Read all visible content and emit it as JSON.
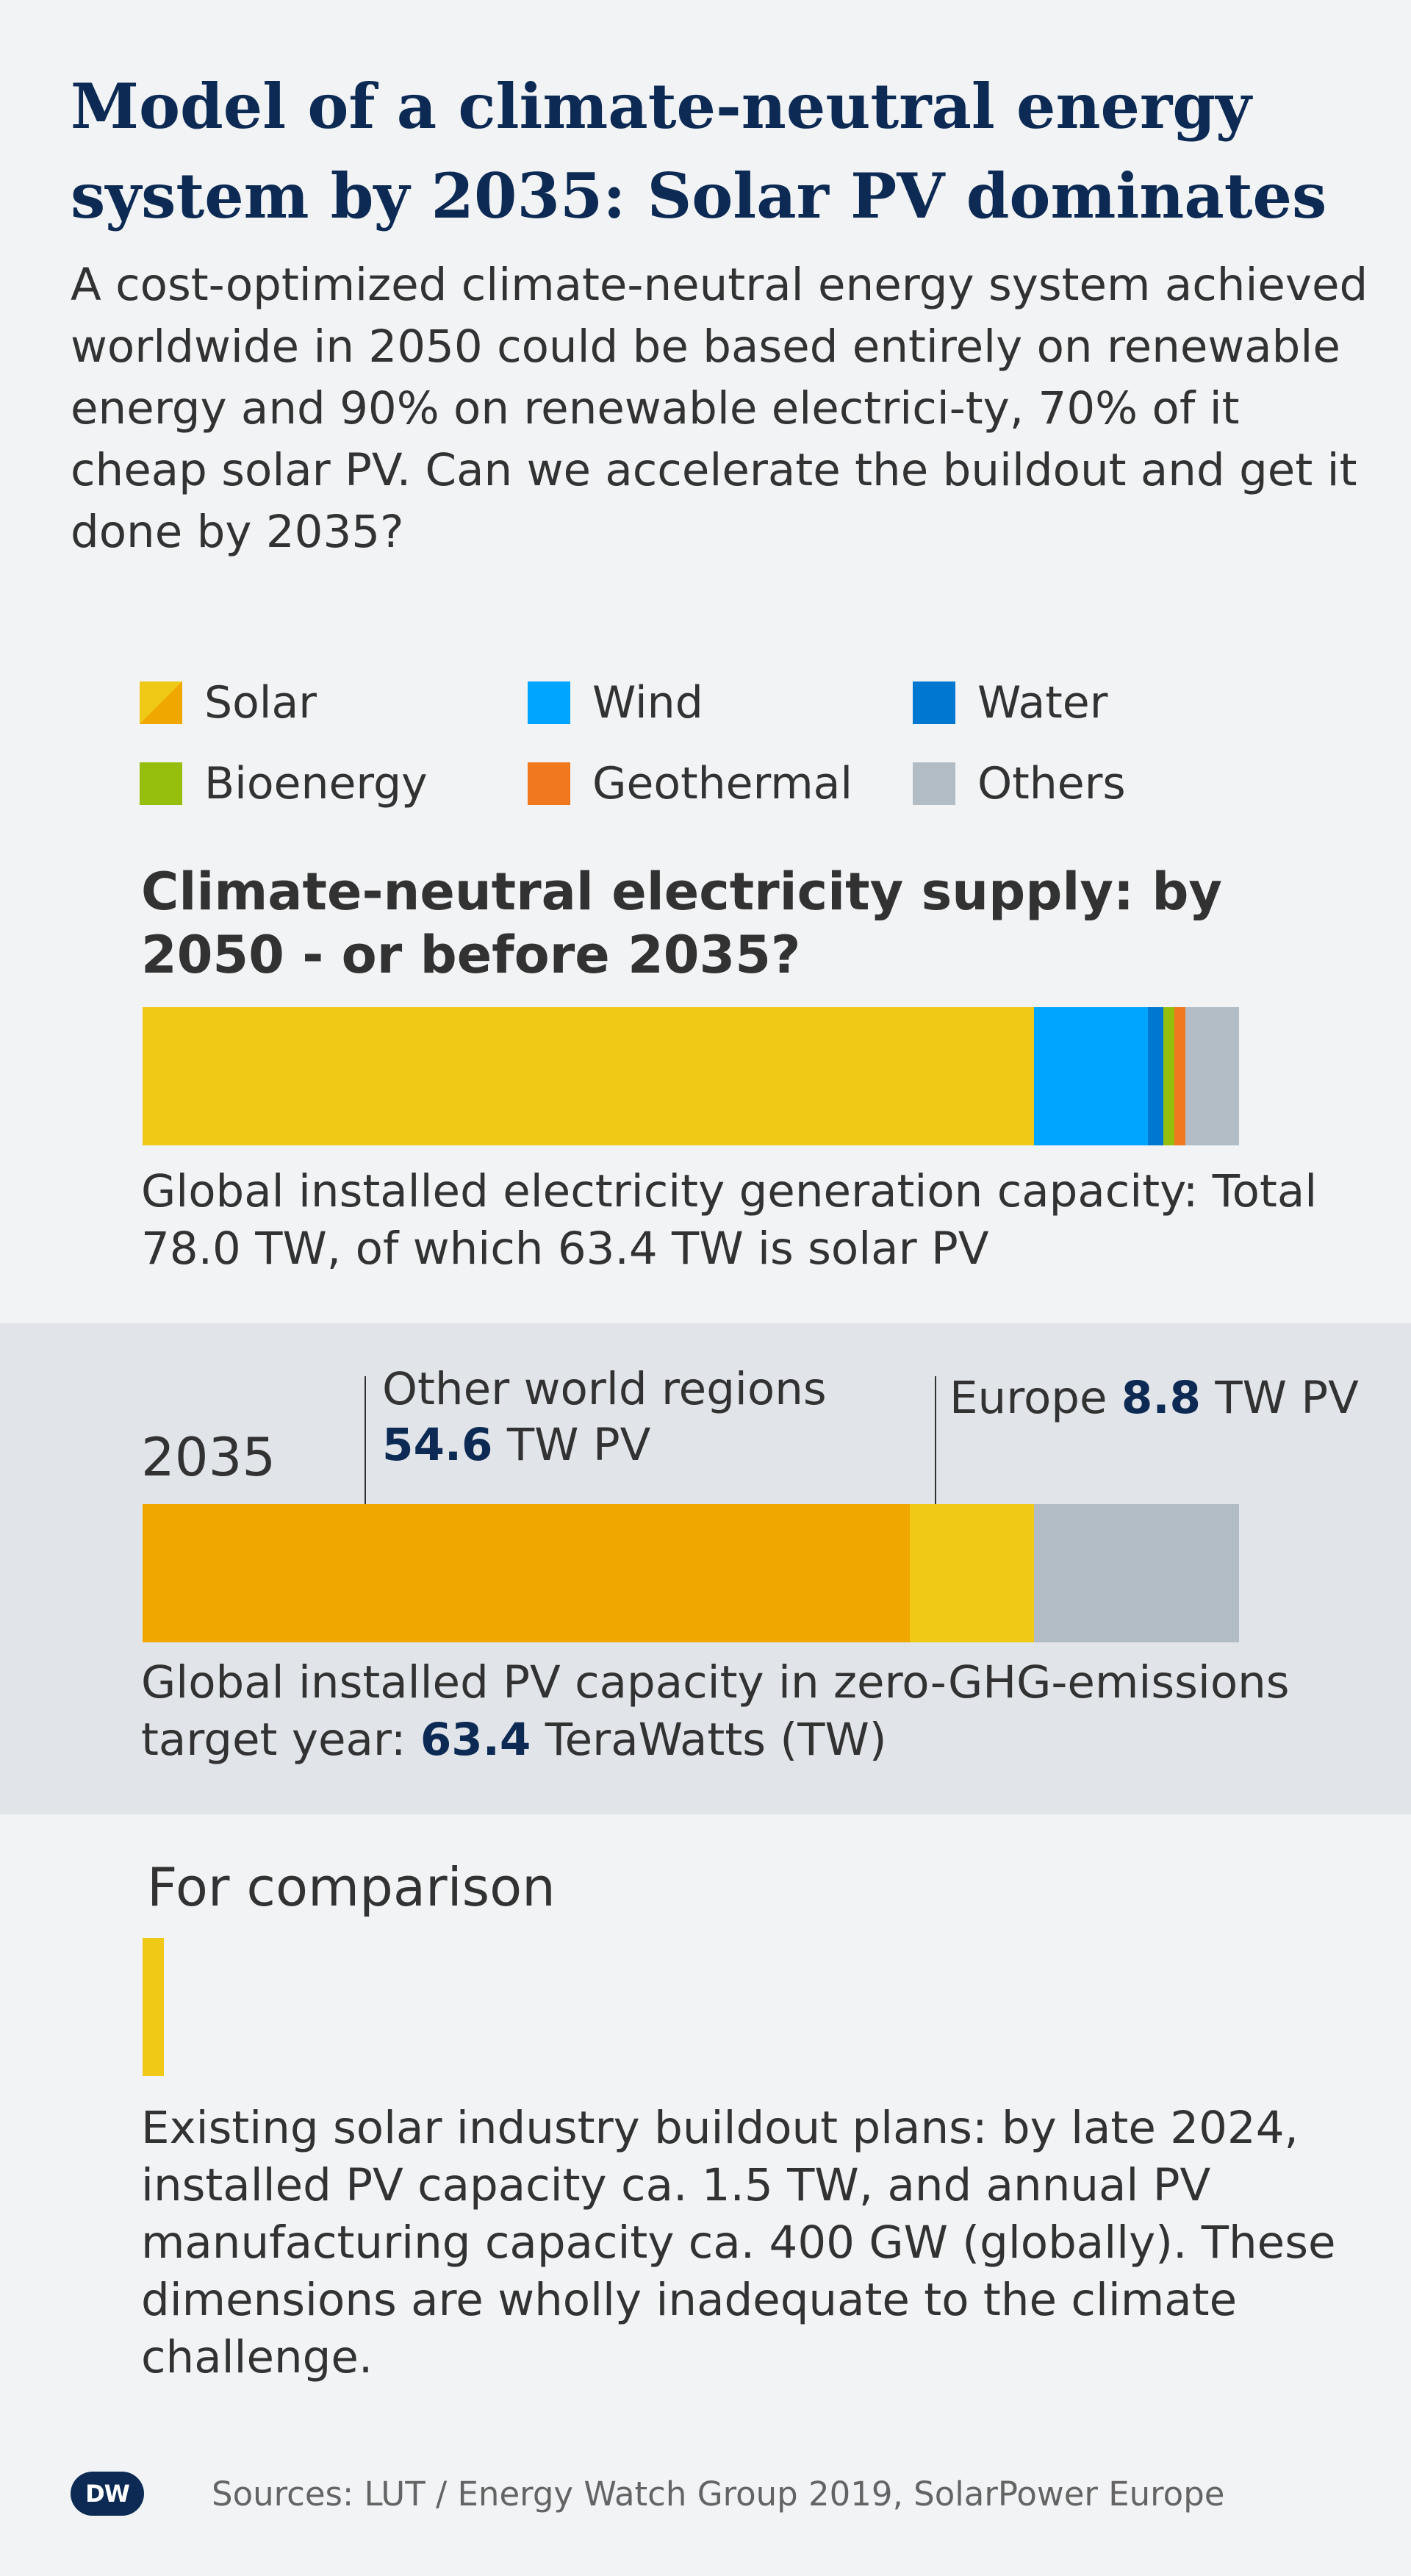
{
  "title": "Model of a climate-neutral energy system by 2035: Solar PV dominates",
  "subtitle": "A cost-optimized climate-neutral energy system achieved worldwide in 2050 could be based entirely on renewable energy and 90% on renewable electrici-ty, 70% of it cheap solar PV. Can we accelerate the buildout and get it done by 2035?",
  "legend": [
    {
      "label": "Solar",
      "color": "#f0c816",
      "color2": "#f0a800"
    },
    {
      "label": "Wind",
      "color": "#00a5ff"
    },
    {
      "label": "Water",
      "color": "#0078d2"
    },
    {
      "label": "Bioenergy",
      "color": "#96be0d"
    },
    {
      "label": "Geothermal",
      "color": "#f0781e"
    },
    {
      "label": "Others",
      "color": "#b2bcc5"
    }
  ],
  "chart_data": [
    {
      "type": "bar",
      "orientation": "horizontal-stacked",
      "title": "Climate-neutral electricity supply: by 2050 - or before 2035?",
      "caption": "Global installed electricity generation capacity: Total 78.0 TW, of which 63.4 TW is solar PV",
      "unit": "TW",
      "total": 78.0,
      "series": [
        {
          "name": "Solar",
          "value": 63.4,
          "color": "#f0c816"
        },
        {
          "name": "Wind",
          "value": 8.1,
          "color": "#00a5ff"
        },
        {
          "name": "Water",
          "value": 1.1,
          "color": "#0078d2"
        },
        {
          "name": "Bioenergy",
          "value": 0.8,
          "color": "#96be0d"
        },
        {
          "name": "Geothermal",
          "value": 0.8,
          "color": "#f0781e"
        },
        {
          "name": "Others",
          "value": 3.8,
          "color": "#b2bcc5"
        }
      ]
    },
    {
      "type": "bar",
      "orientation": "horizontal-stacked",
      "year_label": "2035",
      "caption_prefix": "Global installed PV capacity in zero-GHG-emissions target year: ",
      "caption_value": "63.4",
      "caption_suffix": " TeraWatts (TW)",
      "unit": "TW",
      "total": 78.0,
      "annotations": {
        "other_regions_label": "Other world regions",
        "other_regions_value": "54.6",
        "other_regions_unit": " TW PV",
        "europe_label": "Europe ",
        "europe_value": "8.8",
        "europe_unit": " TW PV"
      },
      "series": [
        {
          "name": "Other world regions",
          "value": 54.6,
          "color": "#f0a800"
        },
        {
          "name": "Europe",
          "value": 8.8,
          "color": "#f0c816"
        },
        {
          "name": "Others",
          "value": 14.6,
          "color": "#b2bcc5"
        }
      ]
    },
    {
      "type": "bar",
      "orientation": "horizontal",
      "title": "For comparison",
      "unit": "TW",
      "scale_max": 78.0,
      "value": 1.5,
      "color": "#f0c816",
      "caption": "Existing solar industry buildout plans: by late 2024, installed PV capacity ca. 1.5 TW, and annual PV manufacturing capacity ca. 400 GW (globally). These dimensions are wholly inadequate to the climate challenge."
    }
  ],
  "footer": {
    "logo_text": "DW",
    "sources": "Sources: LUT / Energy Watch Group 2019, SolarPower Europe"
  }
}
